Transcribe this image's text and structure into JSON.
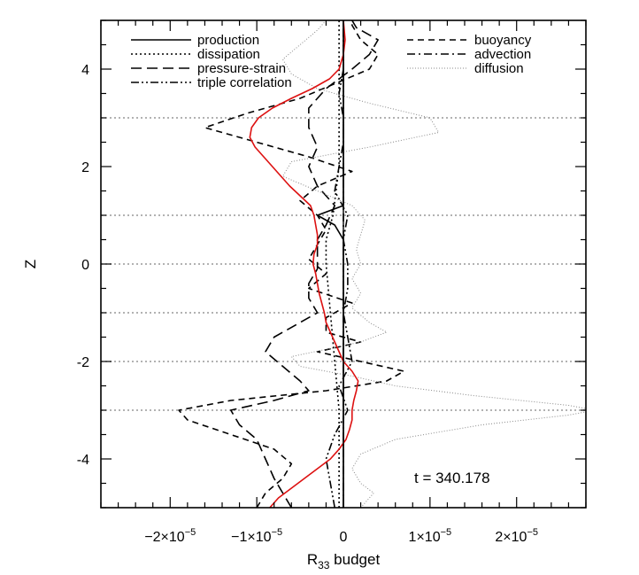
{
  "chart_data": {
    "type": "line",
    "title": "",
    "xlabel_main": "R",
    "xlabel_sub": "33",
    "xlabel_rest": " budget",
    "ylabel": "Z",
    "xlim": [
      -2.8e-05,
      2.8e-05
    ],
    "ylim": [
      -5,
      5
    ],
    "x_ticks": [
      {
        "value": -2e-05,
        "mant": "−2×10",
        "exp": "−5"
      },
      {
        "value": -1e-05,
        "mant": "−1×10",
        "exp": "−5"
      },
      {
        "value": 0,
        "mant": "0",
        "exp": ""
      },
      {
        "value": 1e-05,
        "mant": "1×10",
        "exp": "−5"
      },
      {
        "value": 2e-05,
        "mant": "2×10",
        "exp": "−5"
      }
    ],
    "y_ticks": [
      {
        "value": 4,
        "label": "4"
      },
      {
        "value": 2,
        "label": "2"
      },
      {
        "value": 0,
        "label": "0"
      },
      {
        "value": -2,
        "label": "-2"
      },
      {
        "value": -4,
        "label": "-4"
      }
    ],
    "hlines": [
      3,
      1,
      0,
      -1,
      -2,
      -3
    ],
    "annotation": "t = 340.178",
    "legend_placement": "top",
    "series": [
      {
        "name": "production",
        "style": "solid",
        "color": "#000000",
        "points": [
          [
            -5,
            0.0
          ],
          [
            -4.5,
            0.0
          ],
          [
            -4,
            0.0
          ],
          [
            -3.5,
            0.0
          ],
          [
            -3,
            0.0
          ],
          [
            -2.5,
            0.0
          ],
          [
            -2,
            0.0
          ],
          [
            -1.5,
            0.0
          ],
          [
            -1,
            0.0
          ],
          [
            -0.5,
            0.0
          ],
          [
            0,
            0.0
          ],
          [
            0.5,
            0.0
          ],
          [
            0.8,
            -1e-06
          ],
          [
            1.0,
            -3e-06
          ],
          [
            1.2,
            0.0
          ],
          [
            1.5,
            0.0
          ],
          [
            2,
            0.0
          ],
          [
            2.5,
            0.0
          ],
          [
            3,
            0.0
          ],
          [
            3.5,
            0.0
          ],
          [
            4,
            0.0
          ],
          [
            4.5,
            0.0
          ],
          [
            5,
            0.0
          ]
        ]
      },
      {
        "name": "dissipation",
        "style": "dotted",
        "color": "#000000",
        "points": [
          [
            -5,
            -5e-07
          ],
          [
            -4,
            -5e-07
          ],
          [
            -3,
            -5e-07
          ],
          [
            -2,
            -1e-06
          ],
          [
            -1,
            -1.5e-06
          ],
          [
            0,
            -2e-06
          ],
          [
            0.5,
            -2e-06
          ],
          [
            1,
            -1.2e-06
          ],
          [
            2,
            -5e-07
          ],
          [
            3,
            -5e-07
          ],
          [
            4,
            -5e-07
          ],
          [
            5,
            -5e-07
          ]
        ]
      },
      {
        "name": "pressure-strain",
        "style": "longdash",
        "color": "#000000",
        "points": [
          [
            -5,
            -6e-06
          ],
          [
            -4.7,
            -7e-06
          ],
          [
            -4.4,
            -8e-06
          ],
          [
            -4.0,
            -9e-06
          ],
          [
            -3.6,
            -1e-05
          ],
          [
            -3.3,
            -1.2e-05
          ],
          [
            -3.0,
            -1.3e-05
          ],
          [
            -2.8,
            -8e-06
          ],
          [
            -2.6,
            -4e-06
          ],
          [
            -2.4,
            -5e-06
          ],
          [
            -2.1,
            -7e-06
          ],
          [
            -1.8,
            -9e-06
          ],
          [
            -1.5,
            -8e-06
          ],
          [
            -1.2,
            -5e-06
          ],
          [
            -1.0,
            -3e-06
          ],
          [
            -0.7,
            -4e-06
          ],
          [
            -0.4,
            -4e-06
          ],
          [
            -0.1,
            -3e-06
          ],
          [
            0.2,
            -3e-06
          ],
          [
            0.5,
            -3e-06
          ],
          [
            0.8,
            -2e-06
          ],
          [
            1.2,
            -1e-06
          ],
          [
            1.6,
            -3e-06
          ],
          [
            2.0,
            -4e-06
          ],
          [
            2.4,
            -3e-06
          ],
          [
            2.8,
            -4e-06
          ],
          [
            3.2,
            -4e-06
          ],
          [
            3.6,
            -2e-06
          ],
          [
            4.0,
            1e-06
          ],
          [
            4.3,
            3e-06
          ],
          [
            4.6,
            4e-06
          ],
          [
            4.85,
            1.5e-06
          ],
          [
            5.0,
            1e-06
          ]
        ]
      },
      {
        "name": "triple correlation",
        "style": "dashdotdot",
        "color": "#000000",
        "points": [
          [
            -5,
            -1e-06
          ],
          [
            -4.5,
            -1.5e-06
          ],
          [
            -4,
            -2e-06
          ],
          [
            -3.5,
            -1e-06
          ],
          [
            -3,
            5e-07
          ],
          [
            -2.5,
            -5e-07
          ],
          [
            -2,
            1e-06
          ],
          [
            -1.5,
            5e-07
          ],
          [
            -1,
            0.0
          ],
          [
            -0.5,
            5e-07
          ],
          [
            0,
            5e-07
          ],
          [
            0.5,
            0.0
          ],
          [
            1,
            5e-07
          ],
          [
            1.5,
            -1e-06
          ],
          [
            2,
            -5e-07
          ],
          [
            2.5,
            0.0
          ],
          [
            3,
            0.0
          ],
          [
            3.5,
            -5e-07
          ],
          [
            4,
            0.0
          ],
          [
            4.5,
            0.0
          ],
          [
            5,
            0.0
          ]
        ]
      },
      {
        "name": "buoyancy",
        "style": "dashed",
        "color": "#000000",
        "points": [
          [
            -5,
            -1e-05
          ],
          [
            -4.7,
            -9e-06
          ],
          [
            -4.4,
            -7e-06
          ],
          [
            -4.1,
            -6e-06
          ],
          [
            -3.8,
            -8e-06
          ],
          [
            -3.5,
            -1.3e-05
          ],
          [
            -3.2,
            -1.8e-05
          ],
          [
            -3.0,
            -1.9e-05
          ],
          [
            -2.8,
            -1.3e-05
          ],
          [
            -2.6,
            -2e-06
          ],
          [
            -2.4,
            5e-06
          ],
          [
            -2.2,
            7e-06
          ],
          [
            -2.0,
            2e-06
          ],
          [
            -1.8,
            -3e-06
          ],
          [
            -1.6,
            2e-06
          ],
          [
            -1.4,
            -2e-06
          ],
          [
            -1.1,
            -2e-06
          ],
          [
            -0.8,
            1e-06
          ],
          [
            -0.5,
            -4e-06
          ],
          [
            -0.2,
            -2e-06
          ],
          [
            0.1,
            -4e-06
          ],
          [
            0.4,
            -3e-06
          ],
          [
            0.7,
            -2e-06
          ],
          [
            1.0,
            -3e-06
          ],
          [
            1.3,
            -5e-06
          ],
          [
            1.6,
            -3e-06
          ],
          [
            1.9,
            1e-06
          ],
          [
            2.2,
            -4e-06
          ],
          [
            2.5,
            -1e-05
          ],
          [
            2.8,
            -1.6e-05
          ],
          [
            3.1,
            -1.1e-05
          ],
          [
            3.4,
            -5e-06
          ],
          [
            3.7,
            -1e-06
          ],
          [
            4.0,
            3e-06
          ],
          [
            4.3,
            4e-06
          ],
          [
            4.6,
            2e-06
          ],
          [
            4.9,
            1e-06
          ],
          [
            5.0,
            1e-06
          ]
        ]
      },
      {
        "name": "advection",
        "style": "dashdot",
        "color": "#000000",
        "points": [
          [
            -5,
            0.0
          ],
          [
            -4.5,
            0.0
          ],
          [
            -4,
            0.0
          ],
          [
            -3.5,
            0.0
          ],
          [
            -3,
            0.0
          ],
          [
            -2.5,
            0.0
          ],
          [
            -2,
            0.0
          ],
          [
            -1.5,
            0.0
          ],
          [
            -1,
            0.0
          ],
          [
            -0.5,
            0.0
          ],
          [
            0,
            0.0
          ],
          [
            0.5,
            0.0
          ],
          [
            1,
            0.0
          ],
          [
            1.5,
            0.0
          ],
          [
            2,
            0.0
          ],
          [
            2.5,
            0.0
          ],
          [
            3,
            0.0
          ],
          [
            3.5,
            0.0
          ],
          [
            4,
            0.0
          ],
          [
            4.5,
            0.0
          ],
          [
            5,
            0.0
          ]
        ]
      },
      {
        "name": "diffusion",
        "style": "finedot",
        "color": "#888888",
        "points": [
          [
            -5,
            2e-06
          ],
          [
            -4.7,
            3.5e-06
          ],
          [
            -4.5,
            2e-06
          ],
          [
            -4.2,
            1e-06
          ],
          [
            -3.9,
            2e-06
          ],
          [
            -3.6,
            6e-06
          ],
          [
            -3.3,
            1.6e-05
          ],
          [
            -3.1,
            2.6e-05
          ],
          [
            -3.0,
            2.9e-05
          ],
          [
            -2.9,
            2.6e-05
          ],
          [
            -2.7,
            1.5e-05
          ],
          [
            -2.5,
            6e-06
          ],
          [
            -2.3,
            1e-06
          ],
          [
            -2.1,
            -5e-06
          ],
          [
            -1.9,
            -6e-06
          ],
          [
            -1.6,
            2e-06
          ],
          [
            -1.4,
            5e-06
          ],
          [
            -1.2,
            3e-06
          ],
          [
            -0.9,
            1e-06
          ],
          [
            -0.6,
            2e-06
          ],
          [
            -0.3,
            1e-06
          ],
          [
            0.0,
            2e-06
          ],
          [
            0.3,
            1.5e-06
          ],
          [
            0.6,
            2e-06
          ],
          [
            0.9,
            2.5e-06
          ],
          [
            1.2,
            1e-06
          ],
          [
            1.5,
            -3e-06
          ],
          [
            1.8,
            -7e-06
          ],
          [
            2.1,
            -6e-06
          ],
          [
            2.4,
            3e-06
          ],
          [
            2.7,
            1.1e-05
          ],
          [
            3.0,
            1e-05
          ],
          [
            3.3,
            3e-06
          ],
          [
            3.6,
            -3e-06
          ],
          [
            3.9,
            -6e-06
          ],
          [
            4.2,
            -7e-06
          ],
          [
            4.5,
            -5e-06
          ],
          [
            4.8,
            -3e-06
          ],
          [
            5.0,
            -2e-06
          ]
        ]
      },
      {
        "name": "",
        "style": "solid",
        "color": "#dd1111",
        "points": [
          [
            -5,
            -8.5e-06
          ],
          [
            -4.8,
            -7.5e-06
          ],
          [
            -4.6,
            -6e-06
          ],
          [
            -4.4,
            -4.5e-06
          ],
          [
            -4.2,
            -3e-06
          ],
          [
            -4.0,
            -1.5e-06
          ],
          [
            -3.8,
            -5e-07
          ],
          [
            -3.6,
            3e-07
          ],
          [
            -3.4,
            7e-07
          ],
          [
            -3.2,
            1e-06
          ],
          [
            -3.0,
            1e-06
          ],
          [
            -2.8,
            1.2e-06
          ],
          [
            -2.6,
            1.5e-06
          ],
          [
            -2.4,
            1.7e-06
          ],
          [
            -2.2,
            1e-06
          ],
          [
            -2.0,
            0.0
          ],
          [
            -1.8,
            -5e-07
          ],
          [
            -1.6,
            -1e-06
          ],
          [
            -1.4,
            -1.5e-06
          ],
          [
            -1.2,
            -2e-06
          ],
          [
            -1.0,
            -2.2e-06
          ],
          [
            -0.8,
            -2.5e-06
          ],
          [
            -0.6,
            -2.8e-06
          ],
          [
            -0.4,
            -3e-06
          ],
          [
            -0.2,
            -3.2e-06
          ],
          [
            0.0,
            -3.5e-06
          ],
          [
            0.2,
            -3.4e-06
          ],
          [
            0.4,
            -3e-06
          ],
          [
            0.6,
            -3e-06
          ],
          [
            0.8,
            -3.2e-06
          ],
          [
            1.0,
            -3.4e-06
          ],
          [
            1.2,
            -3.8e-06
          ],
          [
            1.4,
            -5e-06
          ],
          [
            1.6,
            -6.2e-06
          ],
          [
            1.8,
            -7.2e-06
          ],
          [
            2.0,
            -8.2e-06
          ],
          [
            2.2,
            -9.2e-06
          ],
          [
            2.4,
            -1.02e-05
          ],
          [
            2.6,
            -1.08e-05
          ],
          [
            2.8,
            -1.06e-05
          ],
          [
            3.0,
            -9.8e-06
          ],
          [
            3.2,
            -8.2e-06
          ],
          [
            3.4,
            -6e-06
          ],
          [
            3.6,
            -3.6e-06
          ],
          [
            3.8,
            -1.6e-06
          ],
          [
            4.0,
            -5e-07
          ],
          [
            4.3,
            0.0
          ],
          [
            4.6,
            2e-07
          ],
          [
            5.0,
            0.0
          ]
        ]
      }
    ]
  }
}
